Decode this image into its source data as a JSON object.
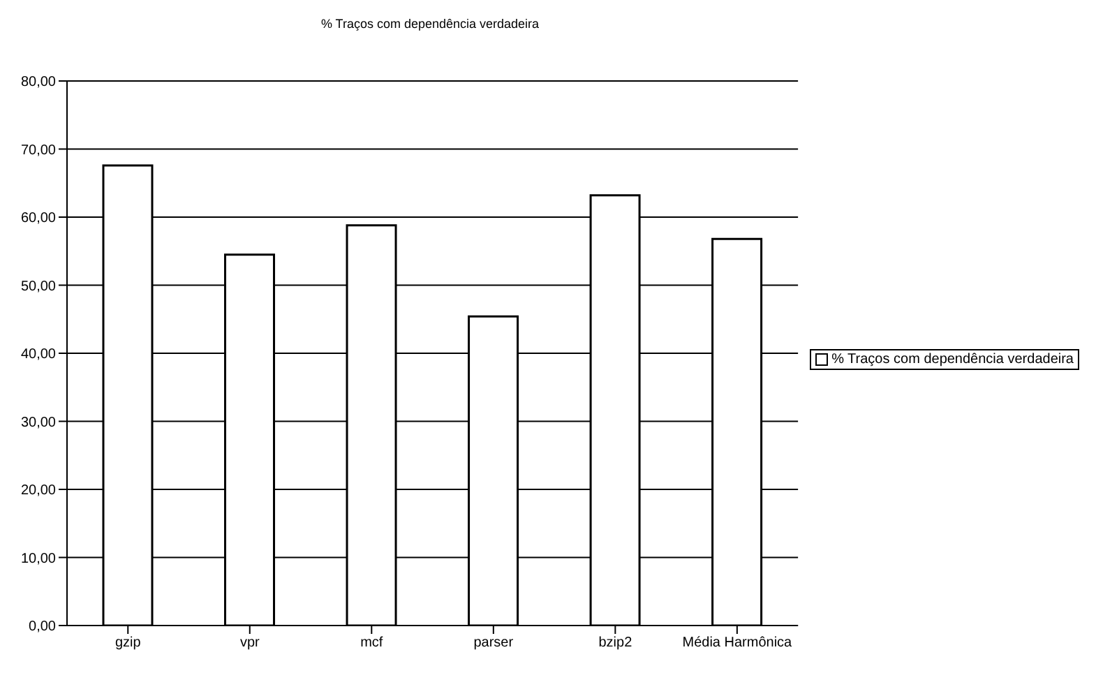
{
  "chart_data": {
    "type": "bar",
    "title": "% Traços com dependência verdadeira",
    "categories": [
      "gzip",
      "vpr",
      "mcf",
      "parser",
      "bzip2",
      "Média Harmônica"
    ],
    "series": [
      {
        "name": "% Traços com dependência verdadeira",
        "color": "#ffffff",
        "values": [
          67.6,
          54.5,
          58.8,
          45.4,
          63.2,
          56.8
        ]
      }
    ],
    "ylim": [
      0,
      80
    ],
    "yticks": [
      {
        "value": 0,
        "label": "0,00"
      },
      {
        "value": 10,
        "label": "10,00"
      },
      {
        "value": 20,
        "label": "20,00"
      },
      {
        "value": 30,
        "label": "30,00"
      },
      {
        "value": 40,
        "label": "40,00"
      },
      {
        "value": 50,
        "label": "50,00"
      },
      {
        "value": 60,
        "label": "60,00"
      },
      {
        "value": 70,
        "label": "70,00"
      },
      {
        "value": 80,
        "label": "80,00"
      }
    ],
    "grid": "y",
    "legend": "right"
  }
}
